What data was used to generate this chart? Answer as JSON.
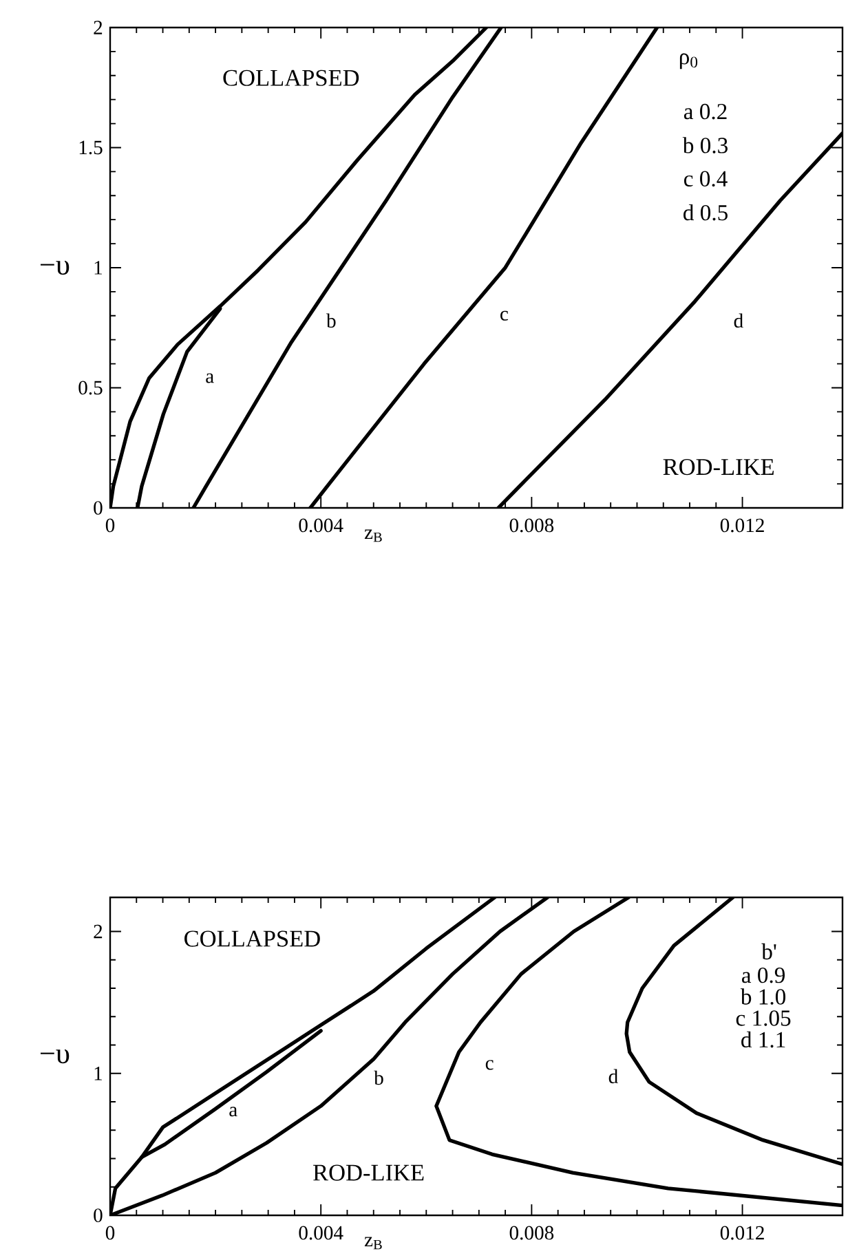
{
  "chart_data": [
    {
      "type": "line",
      "xlabel": "z$_{B}$",
      "ylabel": "−υ",
      "xlim": [
        0,
        0.0139
      ],
      "ylim": [
        0,
        2
      ],
      "xticks": [
        0,
        0.004,
        0.008,
        0.012
      ],
      "yticks": [
        0,
        0.5,
        1,
        1.5,
        2
      ],
      "series": [
        {
          "color": "#000000",
          "x": [
            0,
            6e-05,
            0.00038,
            0.00074,
            0.00128,
            0.00209,
            0.00281,
            0.00371,
            0.0047,
            0.00578,
            0.0065,
            0.00714
          ],
          "values": [
            0,
            0.09,
            0.36,
            0.54,
            0.68,
            0.84,
            0.99,
            1.19,
            1.45,
            1.72,
            1.86,
            2.0
          ]
        },
        {
          "name": "a",
          "color": "#000000",
          "x": [
            0.00052,
            0.0006,
            0.00101,
            0.00146,
            0.00209
          ],
          "values": [
            0,
            0.09,
            0.39,
            0.65,
            0.83
          ]
        },
        {
          "name": "b",
          "color": "#000000",
          "x": [
            0.00158,
            0.00182,
            0.00344,
            0.00524,
            0.0065,
            0.00742
          ],
          "values": [
            0,
            0.09,
            0.69,
            1.28,
            1.71,
            2.0
          ]
        },
        {
          "name": "c",
          "color": "#000000",
          "x": [
            0.0038,
            0.00412,
            0.00596,
            0.0075,
            0.00894,
            0.01038
          ],
          "values": [
            0,
            0.09,
            0.6,
            1.0,
            1.52,
            2.0
          ]
        },
        {
          "name": "d",
          "color": "#000000",
          "x": [
            0.00737,
            0.00777,
            0.00939,
            0.0111,
            0.01272,
            0.0139
          ],
          "values": [
            0,
            0.09,
            0.45,
            0.86,
            1.28,
            1.56
          ]
        }
      ],
      "annotations": [
        "COLLAPSED",
        "ROD-LIKE",
        "ρ$_{0}$",
        "a  0.2",
        "b  0.3",
        "c  0.4",
        "d  0.5"
      ]
    },
    {
      "type": "line",
      "xlabel": "z$_{B}$",
      "ylabel": "−υ",
      "xlim": [
        0,
        0.0139
      ],
      "ylim": [
        0,
        2.24
      ],
      "xticks": [
        0,
        0.004,
        0.008,
        0.012
      ],
      "yticks": [
        0,
        1,
        2
      ],
      "series": [
        {
          "color": "#000000",
          "x": [
            0,
            0.0001,
            0.0006,
            0.001,
            0.002,
            0.003,
            0.004,
            0.005,
            0.006,
            0.0073
          ],
          "values": [
            0,
            0.19,
            0.41,
            0.62,
            0.86,
            1.1,
            1.34,
            1.58,
            1.88,
            2.24
          ]
        },
        {
          "name": "a",
          "color": "#000000",
          "x": [
            0.0006,
            0.00104,
            0.002,
            0.00297,
            0.004
          ],
          "values": [
            0.41,
            0.5,
            0.75,
            1.01,
            1.3
          ]
        },
        {
          "name": "b",
          "color": "#000000",
          "x": [
            0,
            0.00099,
            0.002,
            0.00297,
            0.004,
            0.005,
            0.0056,
            0.0065,
            0.0074,
            0.0083
          ],
          "values": [
            0,
            0.14,
            0.3,
            0.51,
            0.77,
            1.1,
            1.36,
            1.7,
            2.0,
            2.24
          ]
        },
        {
          "name": "c",
          "color": "#000000",
          "x": [
            0.0139,
            0.01059,
            0.00878,
            0.00725,
            0.00644,
            0.00619,
            0.00662,
            0.00703,
            0.0078,
            0.0088,
            0.00984
          ],
          "values": [
            0.07,
            0.19,
            0.3,
            0.43,
            0.53,
            0.77,
            1.15,
            1.36,
            1.7,
            2.0,
            2.24
          ]
        },
        {
          "name": "d",
          "color": "#000000",
          "x": [
            0.0139,
            0.01239,
            0.01113,
            0.01023,
            0.00986,
            0.0098,
            0.00982,
            0.0101,
            0.0107,
            0.01182
          ],
          "values": [
            0.36,
            0.53,
            0.72,
            0.94,
            1.15,
            1.28,
            1.36,
            1.6,
            1.9,
            2.24
          ]
        }
      ],
      "annotations": [
        "COLLAPSED",
        "ROD-LIKE",
        "b'",
        "a 0.9",
        "b 1.0",
        "c 1.05",
        "d 1.1"
      ]
    }
  ]
}
